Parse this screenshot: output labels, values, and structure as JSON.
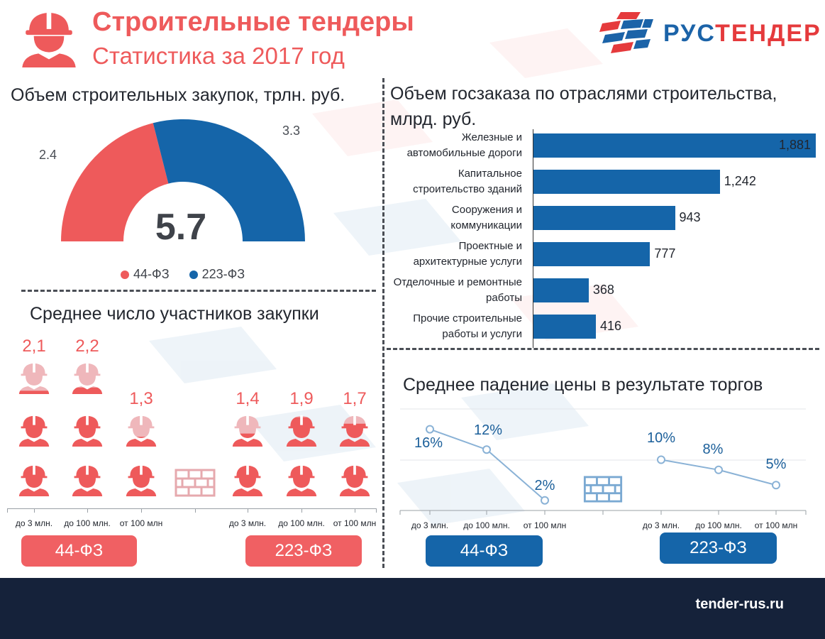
{
  "header": {
    "title": "Строительные тендеры",
    "subtitle": "Статистика за 2017 год",
    "logo_part1": "РУС",
    "logo_part2": "ТЕНДЕР"
  },
  "colors": {
    "red": "#ee5a5b",
    "blue": "#1565a9",
    "dark": "#15223a"
  },
  "icons": {
    "worker": "worker-icon",
    "brick": "brick-wall-icon",
    "logo": "rustender-logo-icon"
  },
  "gauge": {
    "title": "Объем строительных закупок, трлн. руб.",
    "total": "5.7"
  },
  "bars": {
    "title_line1": "Объем госзаказа по отраслями строительства,",
    "title_line2": "млрд. руб."
  },
  "participants": {
    "title": "Среднее число участников закупки",
    "label_44": "44-ФЗ",
    "label_223": "223-ФЗ"
  },
  "price_drop": {
    "title": "Среднее падение цены в результате торгов",
    "label_44": "44-ФЗ",
    "label_223": "223-ФЗ"
  },
  "footer": {
    "url": "tender-rus.ru"
  },
  "chart_data": [
    {
      "type": "pie",
      "title": "Объем строительных закупок, трлн. руб.",
      "categories": [
        "44-ФЗ",
        "223-ФЗ"
      ],
      "values": [
        2.4,
        3.3
      ],
      "value_labels": [
        "2.4",
        "3.3"
      ],
      "colors": [
        "#ee5a5b",
        "#1565a9"
      ],
      "total": 5.7,
      "shape": "half-donut",
      "legend": "bottom"
    },
    {
      "type": "bar",
      "orientation": "horizontal",
      "title": "Объем госзаказа по отраслями строительства, млрд. руб.",
      "categories": [
        [
          "Железные и",
          "автомобильные дороги"
        ],
        [
          "Капитальное",
          "строительство зданий"
        ],
        [
          "Сооружения и",
          "коммуникации"
        ],
        [
          "Проектные и",
          "архитектурные услуги"
        ],
        [
          "Отделочные и ремонтные",
          "работы"
        ],
        [
          "Прочие строительные",
          "работы и услуги"
        ]
      ],
      "values": [
        1881,
        1242,
        943,
        777,
        368,
        416
      ],
      "value_labels": [
        "1,881",
        "1,242",
        "943",
        "777",
        "368",
        "416"
      ],
      "xlim": [
        0,
        1881
      ]
    },
    {
      "type": "bar",
      "title": "Среднее число участников закупки",
      "groups": [
        {
          "name": "44-ФЗ",
          "categories": [
            "до 3 млн.",
            "до 100 млн.",
            "от 100 млн"
          ],
          "values": [
            2.1,
            2.2,
            1.3
          ],
          "value_labels": [
            "2,1",
            "2,2",
            "1,3"
          ]
        },
        {
          "name": "223-ФЗ",
          "categories": [
            "до 3 млн.",
            "до 100 млн.",
            "от 100 млн"
          ],
          "values": [
            1.4,
            1.9,
            1.7
          ],
          "value_labels": [
            "1,4",
            "1,9",
            "1,7"
          ]
        }
      ]
    },
    {
      "type": "line",
      "title": "Среднее падение цены в результате торгов",
      "ylim": [
        0,
        20
      ],
      "groups": [
        {
          "name": "44-ФЗ",
          "categories": [
            "до 3 млн.",
            "до 100 млн.",
            "от 100 млн"
          ],
          "values": [
            16,
            12,
            2
          ],
          "value_labels": [
            "16%",
            "12%",
            "2%"
          ]
        },
        {
          "name": "223-ФЗ",
          "categories": [
            "до 3 млн.",
            "до 100 млн.",
            "от 100 млн"
          ],
          "values": [
            10,
            8,
            5
          ],
          "value_labels": [
            "10%",
            "8%",
            "5%"
          ]
        }
      ]
    }
  ]
}
